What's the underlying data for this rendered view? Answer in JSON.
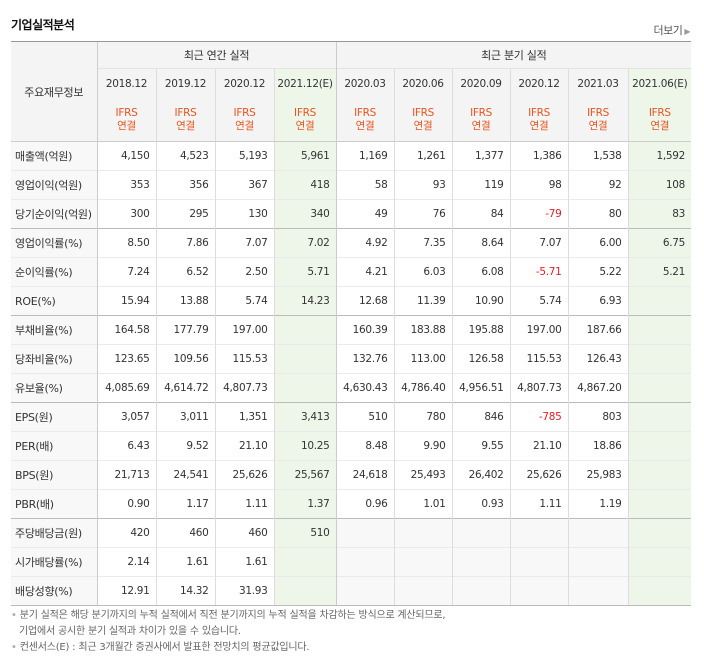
{
  "section_title": "기업실적분석",
  "more_label": "더보기",
  "header": {
    "label_col": "주요재무정보",
    "annual_group": "최근 연간 실적",
    "quarter_group": "최근 분기 실적",
    "annual_dates": [
      "2018.12",
      "2019.12",
      "2020.12",
      "2021.12(E)"
    ],
    "quarter_dates": [
      "2020.03",
      "2020.06",
      "2020.09",
      "2020.12",
      "2021.03",
      "2021.06(E)"
    ],
    "ifrs_top": "IFRS",
    "ifrs_bottom": "연결"
  },
  "rows": [
    {
      "label": "매출액(억원)",
      "values": [
        "4,150",
        "4,523",
        "5,193",
        "5,961",
        "1,169",
        "1,261",
        "1,377",
        "1,386",
        "1,538",
        "1,592"
      ]
    },
    {
      "label": "영업이익(억원)",
      "values": [
        "353",
        "356",
        "367",
        "418",
        "58",
        "93",
        "119",
        "98",
        "92",
        "108"
      ]
    },
    {
      "label": "당기순이익(억원)",
      "values": [
        "300",
        "295",
        "130",
        "340",
        "49",
        "76",
        "84",
        "-79",
        "80",
        "83"
      ]
    },
    {
      "label": "영업이익률(%)",
      "values": [
        "8.50",
        "7.86",
        "7.07",
        "7.02",
        "4.92",
        "7.35",
        "8.64",
        "7.07",
        "6.00",
        "6.75"
      ]
    },
    {
      "label": "순이익률(%)",
      "values": [
        "7.24",
        "6.52",
        "2.50",
        "5.71",
        "4.21",
        "6.03",
        "6.08",
        "-5.71",
        "5.22",
        "5.21"
      ]
    },
    {
      "label": "ROE(%)",
      "values": [
        "15.94",
        "13.88",
        "5.74",
        "14.23",
        "12.68",
        "11.39",
        "10.90",
        "5.74",
        "6.93",
        ""
      ]
    },
    {
      "label": "부채비율(%)",
      "values": [
        "164.58",
        "177.79",
        "197.00",
        "",
        "160.39",
        "183.88",
        "195.88",
        "197.00",
        "187.66",
        ""
      ]
    },
    {
      "label": "당좌비율(%)",
      "values": [
        "123.65",
        "109.56",
        "115.53",
        "",
        "132.76",
        "113.00",
        "126.58",
        "115.53",
        "126.43",
        ""
      ]
    },
    {
      "label": "유보율(%)",
      "values": [
        "4,085.69",
        "4,614.72",
        "4,807.73",
        "",
        "4,630.43",
        "4,786.40",
        "4,956.51",
        "4,807.73",
        "4,867.20",
        ""
      ]
    },
    {
      "label": "EPS(원)",
      "values": [
        "3,057",
        "3,011",
        "1,351",
        "3,413",
        "510",
        "780",
        "846",
        "-785",
        "803",
        ""
      ]
    },
    {
      "label": "PER(배)",
      "values": [
        "6.43",
        "9.52",
        "21.10",
        "10.25",
        "8.48",
        "9.90",
        "9.55",
        "21.10",
        "18.86",
        ""
      ]
    },
    {
      "label": "BPS(원)",
      "values": [
        "21,713",
        "24,541",
        "25,626",
        "25,567",
        "24,618",
        "25,493",
        "26,402",
        "25,626",
        "25,983",
        ""
      ]
    },
    {
      "label": "PBR(배)",
      "values": [
        "0.90",
        "1.17",
        "1.11",
        "1.37",
        "0.96",
        "1.01",
        "0.93",
        "1.11",
        "1.19",
        ""
      ]
    },
    {
      "label": "주당배당금(원)",
      "values": [
        "420",
        "460",
        "460",
        "510",
        "",
        "",
        "",
        "",
        "",
        ""
      ]
    },
    {
      "label": "시가배당률(%)",
      "values": [
        "2.14",
        "1.61",
        "1.61",
        "",
        "",
        "",
        "",
        "",
        "",
        ""
      ]
    },
    {
      "label": "배당성향(%)",
      "values": [
        "12.91",
        "14.32",
        "31.93",
        "",
        "",
        "",
        "",
        "",
        "",
        ""
      ]
    }
  ],
  "notes": {
    "line1": "분기 실적은 해당 분기까지의 누적 실적에서 직전 분기까지의 누적 실적을 차감하는 방식으로 계산되므로,",
    "line2": "기업에서 공시한 분기 실적과 차이가 있을 수 있습니다.",
    "line3": "컨센서스(E) : 최근 3개월간 증권사에서 발표한 전망치의 평균값입니다."
  }
}
